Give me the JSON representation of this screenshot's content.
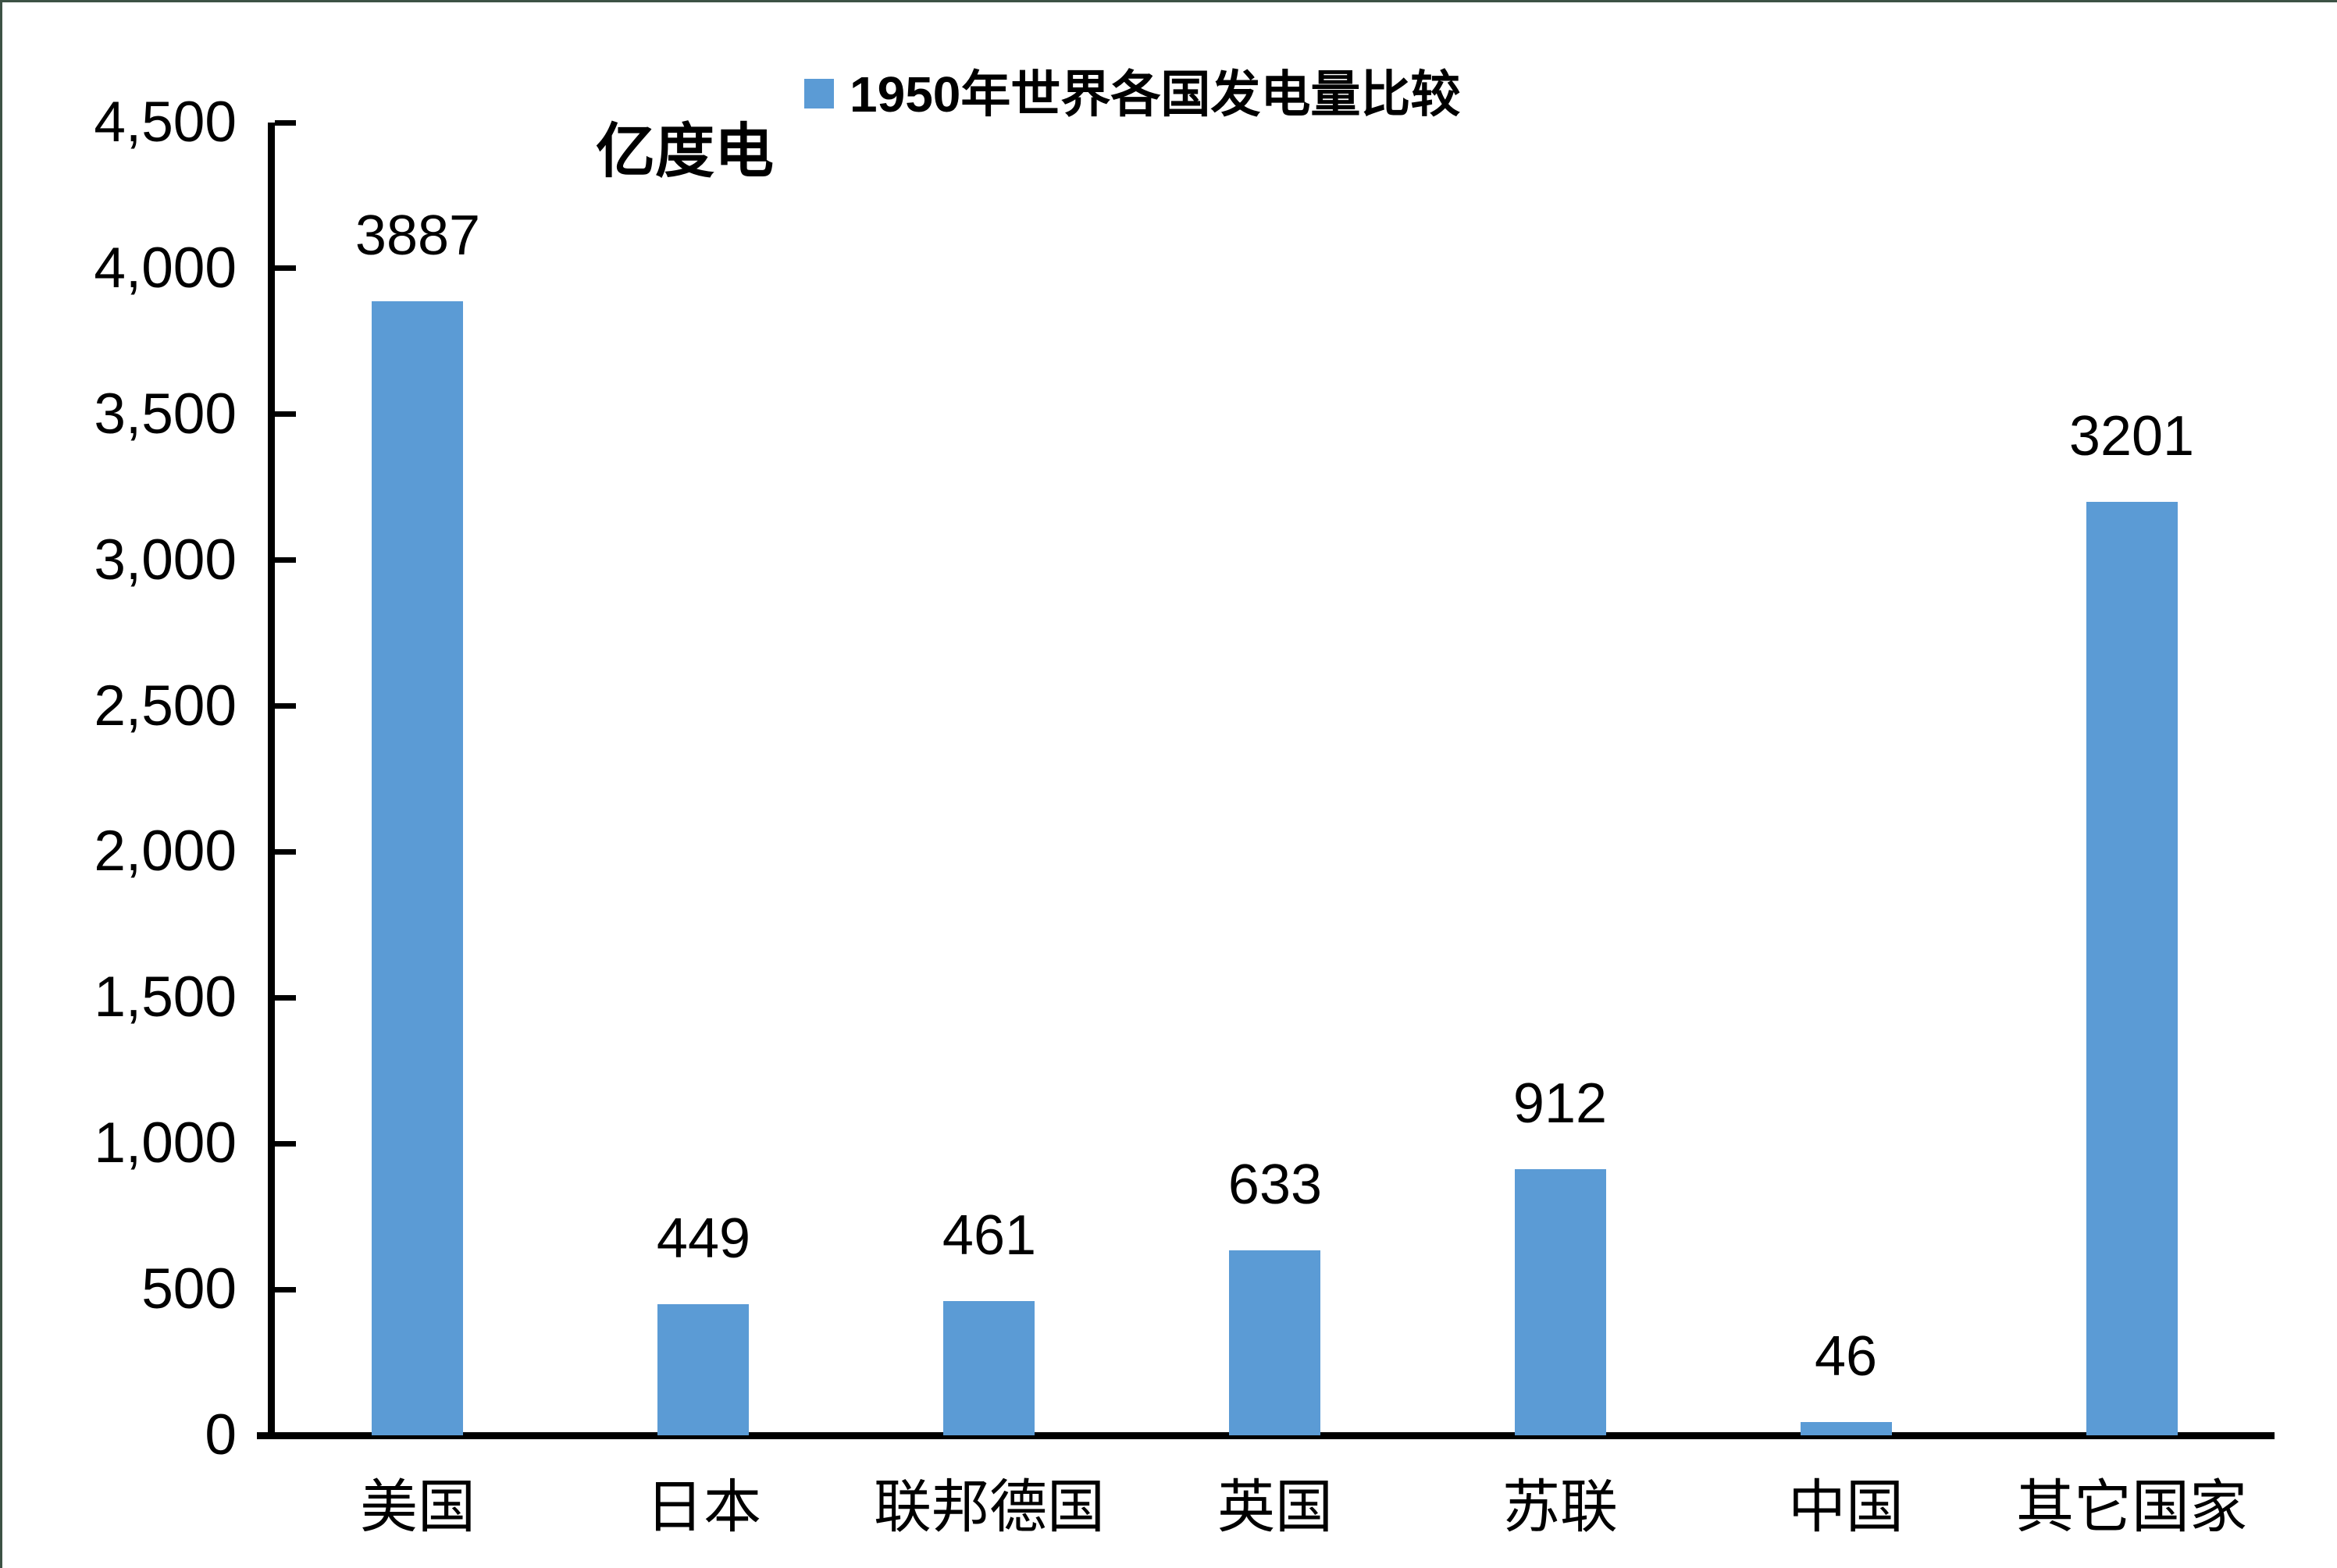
{
  "chart_data": {
    "type": "bar",
    "title": "1950年世界各国发电量比较",
    "unit_label": "亿度电",
    "categories": [
      "美国",
      "日本",
      "联邦德国",
      "英国",
      "苏联",
      "中国",
      "其它国家"
    ],
    "values": [
      3887,
      449,
      461,
      633,
      912,
      46,
      3201
    ],
    "value_labels": [
      "3887",
      "449",
      "461",
      "633",
      "912",
      "46",
      "3201"
    ],
    "series": [
      {
        "name": "1950年世界各国发电量比较",
        "values": [
          3887,
          449,
          461,
          633,
          912,
          46,
          3201
        ]
      }
    ],
    "xlabel": "",
    "ylabel": "亿度电",
    "ylim": [
      0,
      4500
    ],
    "ytick_interval": 500,
    "ytick_labels": [
      "0",
      "500",
      "1,000",
      "1,500",
      "2,000",
      "2,500",
      "3,000",
      "3,500",
      "4,000",
      "4,500"
    ],
    "grid": false,
    "legend_position": "top-center",
    "bar_color": "#5B9BD5",
    "axis_color": "#000000",
    "text_color": "#000000",
    "background_color": "#ffffff",
    "frame_border_color": "#3D5245"
  },
  "legend": {
    "label": "1950年世界各国发电量比较",
    "swatch_color": "#5B9BD5"
  },
  "unit_label": "亿度电"
}
